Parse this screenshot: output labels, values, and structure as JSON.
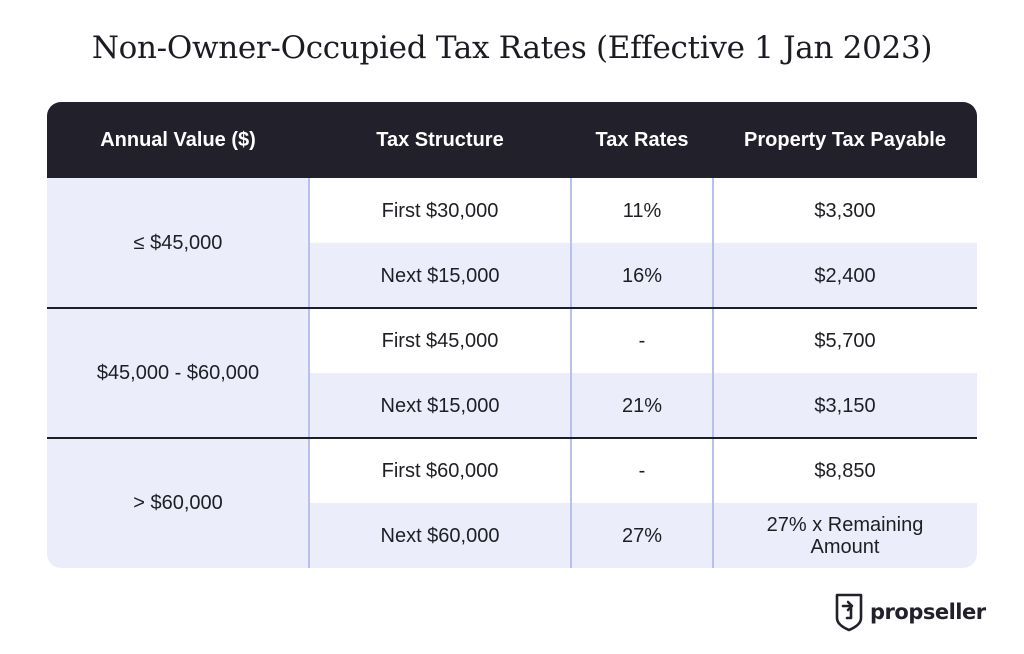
{
  "title": "Non-Owner-Occupied Tax Rates (Effective 1 Jan 2023)",
  "table": {
    "headers": [
      "Annual Value ($)",
      "Tax Structure",
      "Tax Rates",
      "Property Tax Payable"
    ],
    "groups": [
      {
        "annual_value": "≤ $45,000",
        "rows": [
          {
            "structure": "First $30,000",
            "rate": "11%",
            "payable": "$3,300"
          },
          {
            "structure": "Next $15,000",
            "rate": "16%",
            "payable": "$2,400"
          }
        ]
      },
      {
        "annual_value": "$45,000 - $60,000",
        "rows": [
          {
            "structure": "First $45,000",
            "rate": "-",
            "payable": "$5,700"
          },
          {
            "structure": "Next $15,000",
            "rate": "21%",
            "payable": "$3,150"
          }
        ]
      },
      {
        "annual_value": "> $60,000",
        "rows": [
          {
            "structure": "First $60,000",
            "rate": "-",
            "payable": "$8,850"
          },
          {
            "structure": "Next $60,000",
            "rate": "27%",
            "payable": "27% x Remaining Amount"
          }
        ]
      }
    ]
  },
  "brand": {
    "name": "propseller",
    "logo_icon": "propseller-shield-icon"
  },
  "colors": {
    "header_bg": "#22212b",
    "row_tint": "#ebedfa",
    "divider": "#b8c0ec"
  }
}
